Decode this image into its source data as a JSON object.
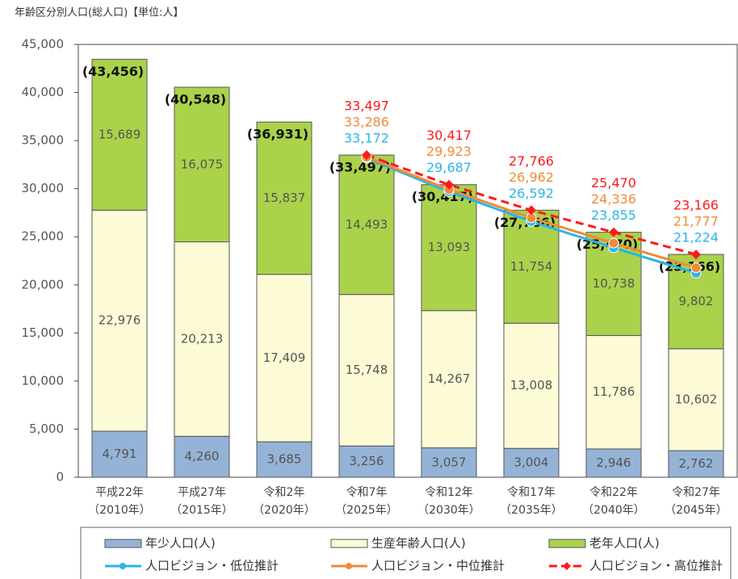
{
  "chart_data": {
    "type": "bar",
    "title": "年齢区分別人口(総人口)【単位:人】",
    "categories": [
      [
        "平成22年",
        "（2010年）"
      ],
      [
        "平成27年",
        "（2015年）"
      ],
      [
        "令和2年",
        "（2020年）"
      ],
      [
        "令和7年",
        "（2025年）"
      ],
      [
        "令和12年",
        "（2030年）"
      ],
      [
        "令和17年",
        "（2035年）"
      ],
      [
        "令和22年",
        "（2040年）"
      ],
      [
        "令和27年",
        "（2045年）"
      ]
    ],
    "ylim": [
      0,
      45000
    ],
    "yticks": [
      0,
      {
        "value": 5000,
        "label": "5,000"
      },
      {
        "value": 10000,
        "label": "10,000"
      },
      {
        "value": 15000,
        "label": "15,000"
      },
      {
        "value": 20000,
        "label": "20,000"
      },
      {
        "value": 25000,
        "label": "25,000"
      },
      {
        "value": 30000,
        "label": "30,000"
      },
      {
        "value": 35000,
        "label": "35,000"
      },
      {
        "value": 40000,
        "label": "40,000"
      },
      {
        "value": 45000,
        "label": "45,000"
      }
    ],
    "totals": {
      "values": [
        43456,
        40548,
        36931,
        33497,
        30417,
        27766,
        25470,
        23166
      ],
      "value_labels": [
        "(43,456)",
        "(40,548)",
        "(36,931)",
        "(33,497)",
        "(30,417)",
        "(27,766)",
        "(25,470)",
        "(23,166)"
      ]
    },
    "series": [
      {
        "name": "年少人口(人)",
        "type": "bar",
        "color": "#95b3d7",
        "values": [
          4791,
          4260,
          3685,
          3256,
          3057,
          3004,
          2946,
          2762
        ],
        "value_labels": [
          "4,791",
          "4,260",
          "3,685",
          "3,256",
          "3,057",
          "3,004",
          "2,946",
          "2,762"
        ]
      },
      {
        "name": "生産年齢人口(人)",
        "type": "bar",
        "color": "#fdfbd6",
        "values": [
          22976,
          20213,
          17409,
          15748,
          14267,
          13008,
          11786,
          10602
        ],
        "value_labels": [
          "22,976",
          "20,213",
          "17,409",
          "15,748",
          "14,267",
          "13,008",
          "11,786",
          "10,602"
        ]
      },
      {
        "name": "老年人口(人)",
        "type": "bar",
        "color": "#aad24b",
        "values": [
          15689,
          16075,
          15837,
          14493,
          13093,
          11754,
          10738,
          9802
        ],
        "value_labels": [
          "15,689",
          "16,075",
          "15,837",
          "14,493",
          "13,093",
          "11,754",
          "10,738",
          "9,802"
        ]
      },
      {
        "name": "人口ビジョン・低位推計",
        "type": "line",
        "color": "#2ab4ea",
        "marker": "circle",
        "values": [
          null,
          null,
          null,
          33172,
          29687,
          26592,
          23855,
          21224
        ],
        "value_labels": [
          null,
          null,
          null,
          "33,172",
          "29,687",
          "26,592",
          "23,855",
          "21,224"
        ]
      },
      {
        "name": "人口ビジョン・中位推計",
        "type": "line",
        "color": "#f08a3a",
        "marker": "circle",
        "values": [
          null,
          null,
          null,
          33286,
          29923,
          26962,
          24336,
          21777
        ],
        "value_labels": [
          null,
          null,
          null,
          "33,286",
          "29,923",
          "26,962",
          "24,336",
          "21,777"
        ]
      },
      {
        "name": "人口ビジョン・高位推計",
        "type": "line",
        "color": "#ff1a1a",
        "marker": "diamond",
        "dashed": true,
        "values": [
          null,
          null,
          null,
          33497,
          30417,
          27766,
          25470,
          23166
        ],
        "value_labels": [
          null,
          null,
          null,
          "33,497",
          "30,417",
          "27,766",
          "25,470",
          "23,166"
        ]
      }
    ]
  }
}
